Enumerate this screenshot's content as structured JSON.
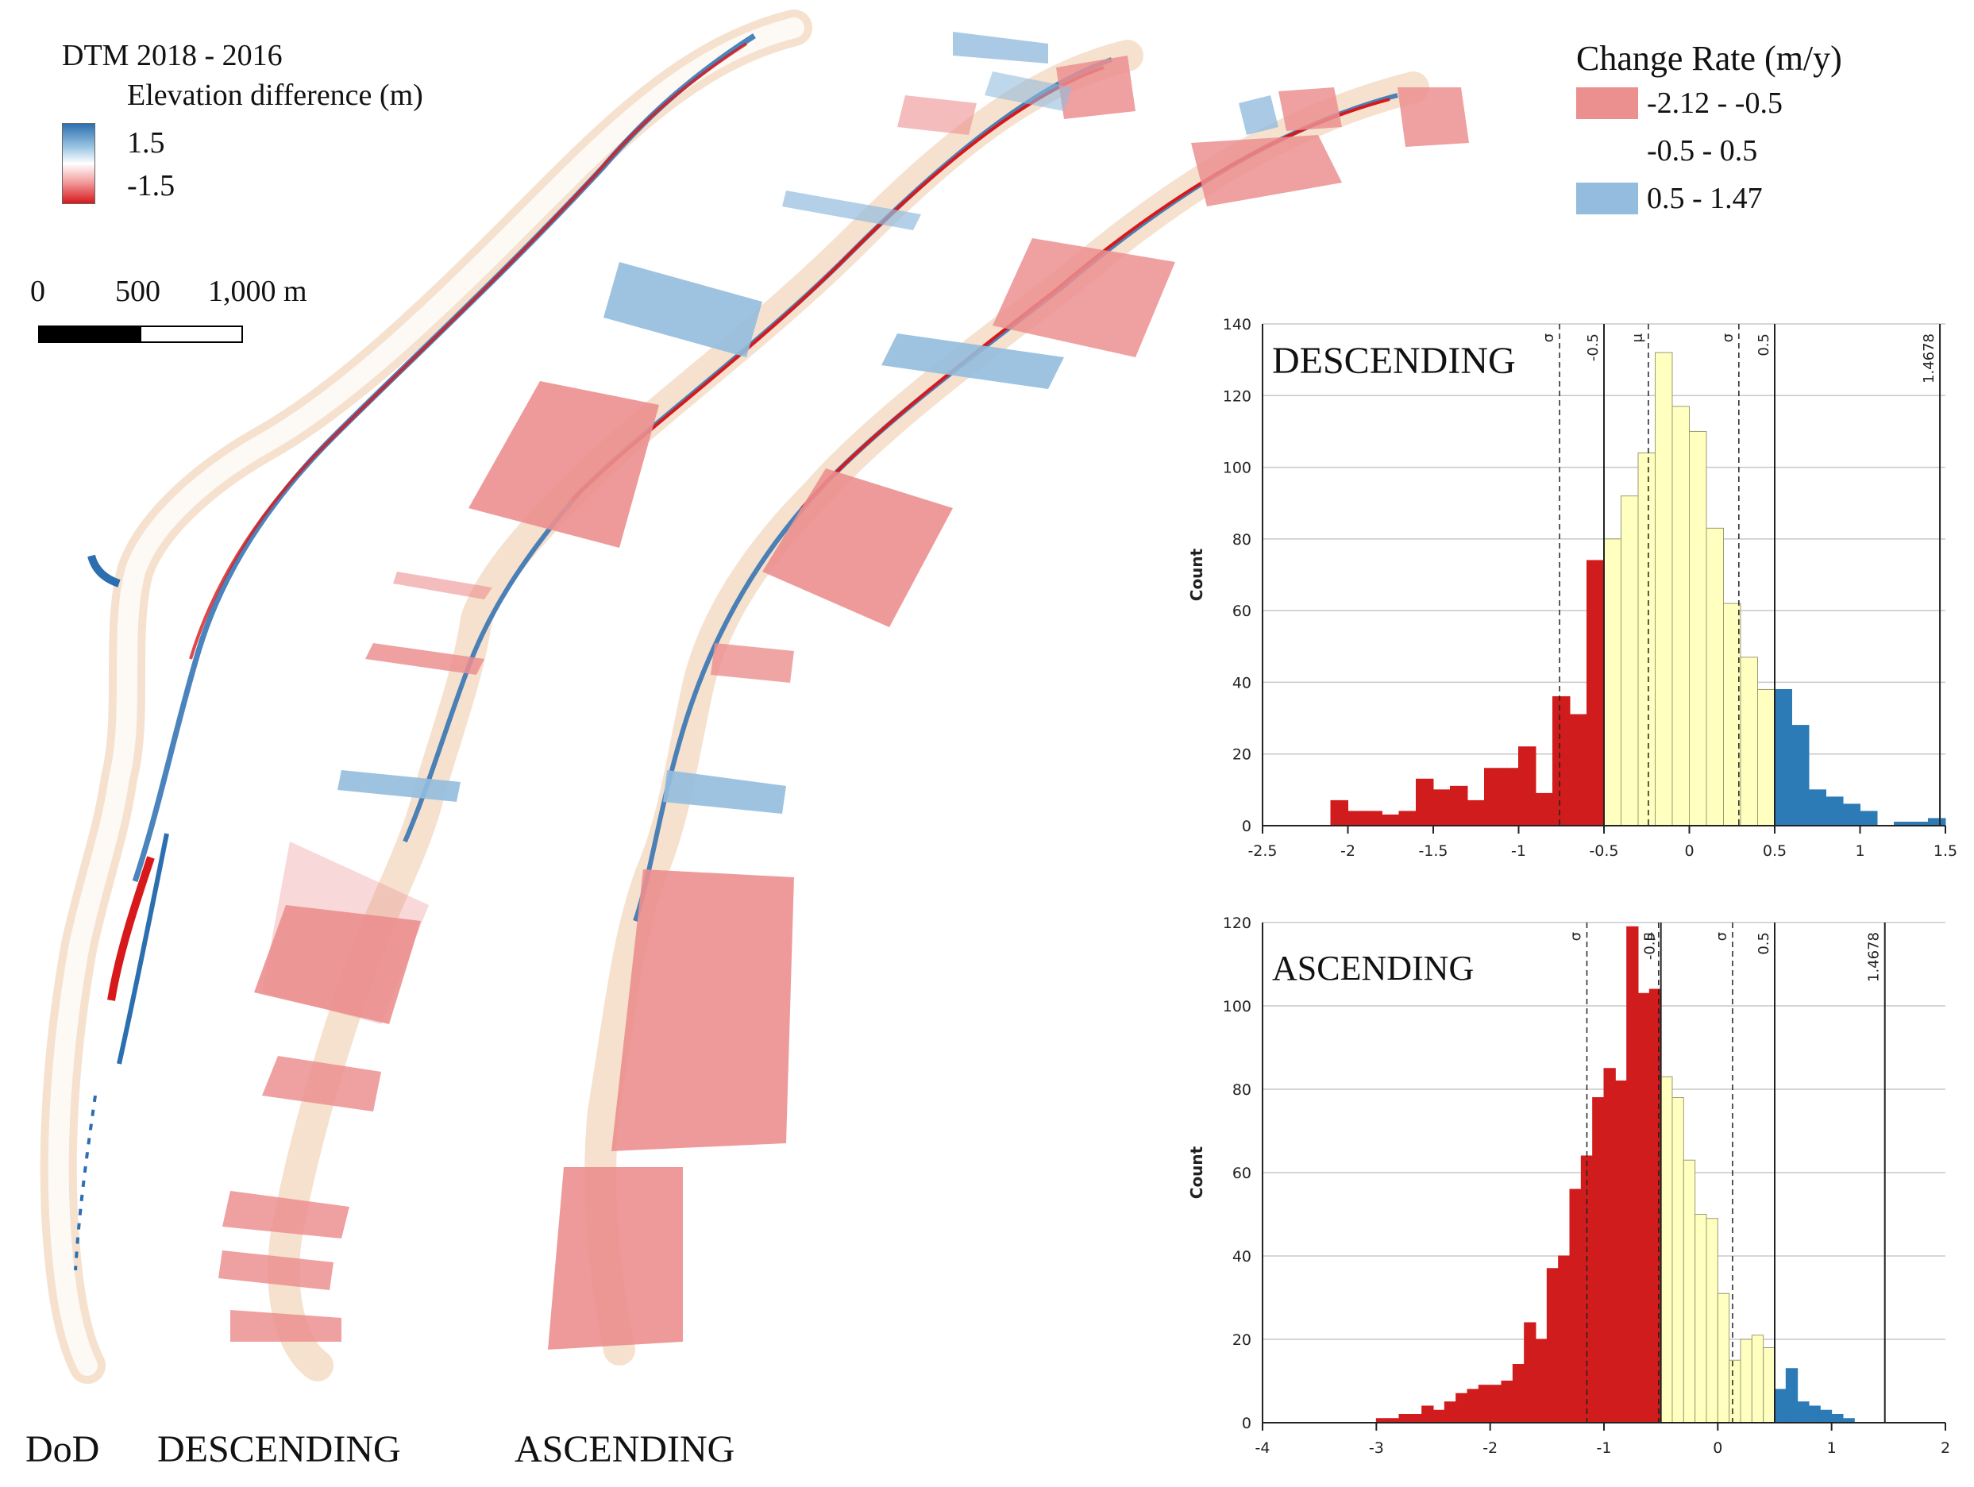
{
  "dod_legend": {
    "title": "DTM 2018 - 2016",
    "subtitle": "Elevation difference (m)",
    "max_label": "1.5",
    "min_label": "-1.5",
    "colors": {
      "high": "#2c6fb0",
      "mid": "#ffffff",
      "low": "#d7191c"
    }
  },
  "scale_bar": {
    "labels": [
      "0",
      "500",
      "1,000 m"
    ]
  },
  "change_legend": {
    "title": "Change Rate (m/y)",
    "items": [
      {
        "label": "-2.12 - -0.5",
        "color": "#ec8f8f"
      },
      {
        "label": "-0.5 - 0.5",
        "color": "#ffffff"
      },
      {
        "label": "0.5 - 1.47",
        "color": "#93bcde"
      }
    ]
  },
  "map_labels": {
    "dod": "DoD",
    "descending": "DESCENDING",
    "ascending": "ASCENDING"
  },
  "chart_data": [
    {
      "type": "bar",
      "title": "DESCENDING",
      "ylabel": "Count",
      "xlim": [
        -2.5,
        1.5
      ],
      "ylim": [
        0,
        140
      ],
      "xticks": [
        -2.5,
        -2,
        -1.5,
        -1,
        -0.5,
        0,
        0.5,
        1,
        1.5
      ],
      "yticks": [
        0,
        20,
        40,
        60,
        80,
        100,
        120,
        140
      ],
      "bin_width": 0.1,
      "bin_starts": [
        -2.1,
        -2.0,
        -1.9,
        -1.8,
        -1.7,
        -1.6,
        -1.5,
        -1.4,
        -1.3,
        -1.2,
        -1.1,
        -1.0,
        -0.9,
        -0.8,
        -0.7,
        -0.6,
        -0.5,
        -0.4,
        -0.3,
        -0.2,
        -0.1,
        0.0,
        0.1,
        0.2,
        0.3,
        0.4,
        0.5,
        0.6,
        0.7,
        0.8,
        0.9,
        1.0,
        1.1,
        1.2,
        1.3,
        1.4
      ],
      "counts": [
        7,
        4,
        4,
        3,
        4,
        13,
        10,
        11,
        7,
        16,
        16,
        22,
        9,
        36,
        31,
        74,
        80,
        92,
        104,
        132,
        117,
        110,
        83,
        62,
        47,
        38,
        38,
        28,
        10,
        8,
        6,
        4,
        0,
        1,
        1,
        2
      ],
      "class_colors": {
        "low": "#d01c1c",
        "mid": "#ffffc0",
        "high": "#2c7bb6"
      },
      "class_breaks": [
        -0.5,
        0.5
      ],
      "vlines": [
        {
          "x": -0.76,
          "label": "σ",
          "style": "dashed"
        },
        {
          "x": -0.5,
          "label": "-0.5",
          "style": "solid"
        },
        {
          "x": -0.24,
          "label": "μ",
          "style": "dashed"
        },
        {
          "x": 0.29,
          "label": "σ",
          "style": "dashed"
        },
        {
          "x": 0.5,
          "label": "0.5",
          "style": "solid"
        },
        {
          "x": 1.4678,
          "label": "1.4678",
          "style": "solid"
        }
      ]
    },
    {
      "type": "bar",
      "title": "ASCENDING",
      "ylabel": "Count",
      "xlim": [
        -4,
        2
      ],
      "ylim": [
        0,
        120
      ],
      "xticks": [
        -4,
        -3,
        -2,
        -1,
        0,
        1,
        2
      ],
      "yticks": [
        0,
        20,
        40,
        60,
        80,
        100,
        120
      ],
      "bin_width": 0.1,
      "bin_starts": [
        -3.0,
        -2.9,
        -2.8,
        -2.7,
        -2.6,
        -2.5,
        -2.4,
        -2.3,
        -2.2,
        -2.1,
        -2.0,
        -1.9,
        -1.8,
        -1.7,
        -1.6,
        -1.5,
        -1.4,
        -1.3,
        -1.2,
        -1.1,
        -1.0,
        -0.9,
        -0.8,
        -0.7,
        -0.6,
        -0.5,
        -0.4,
        -0.3,
        -0.2,
        -0.1,
        0.0,
        0.1,
        0.2,
        0.3,
        0.4,
        0.5,
        0.6,
        0.7,
        0.8,
        0.9,
        1.0,
        1.1,
        1.2,
        1.3,
        1.4
      ],
      "counts": [
        1,
        1,
        2,
        2,
        4,
        3,
        5,
        7,
        8,
        9,
        9,
        10,
        14,
        24,
        20,
        37,
        40,
        56,
        64,
        78,
        85,
        82,
        119,
        103,
        104,
        83,
        78,
        63,
        50,
        49,
        31,
        15,
        20,
        21,
        18,
        8,
        13,
        5,
        4,
        3,
        2,
        1,
        0,
        0,
        0
      ],
      "class_colors": {
        "low": "#d01c1c",
        "mid": "#ffffc0",
        "high": "#2c7bb6"
      },
      "class_breaks": [
        -0.5,
        0.5
      ],
      "vlines": [
        {
          "x": -1.15,
          "label": "σ",
          "style": "dashed"
        },
        {
          "x": -0.5,
          "label": "-0.5",
          "style": "solid"
        },
        {
          "x": -0.52,
          "label": "μ",
          "style": "dashed"
        },
        {
          "x": 0.13,
          "label": "σ",
          "style": "dashed"
        },
        {
          "x": 0.5,
          "label": "0.5",
          "style": "solid"
        },
        {
          "x": 1.4678,
          "label": "1.4678",
          "style": "solid"
        }
      ]
    }
  ]
}
